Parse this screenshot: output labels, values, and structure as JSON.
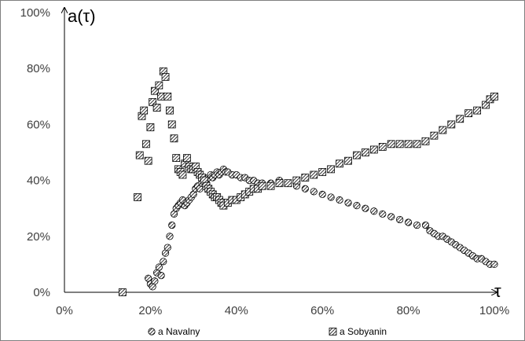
{
  "chart_data": {
    "type": "scatter",
    "title": "",
    "xlabel": "τ",
    "ylabel": "a(τ)",
    "xlim": [
      0,
      100
    ],
    "ylim": [
      0,
      100
    ],
    "x_ticks": [
      "0%",
      "20%",
      "40%",
      "60%",
      "80%",
      "100%"
    ],
    "y_ticks": [
      "0%",
      "20%",
      "40%",
      "60%",
      "80%",
      "100%"
    ],
    "grid": false,
    "legend_position": "bottom",
    "series": [
      {
        "name": "a Navalny",
        "marker": "circle-hatched",
        "points": [
          [
            19.5,
            5
          ],
          [
            20,
            3
          ],
          [
            20.5,
            2
          ],
          [
            21,
            4
          ],
          [
            21.5,
            7
          ],
          [
            22,
            9
          ],
          [
            22.5,
            6
          ],
          [
            23,
            11
          ],
          [
            23.5,
            14
          ],
          [
            24,
            16
          ],
          [
            24.5,
            20
          ],
          [
            25,
            24
          ],
          [
            25.5,
            28
          ],
          [
            26,
            30
          ],
          [
            26.5,
            31
          ],
          [
            27,
            32
          ],
          [
            27.5,
            33
          ],
          [
            28,
            31
          ],
          [
            28.5,
            32
          ],
          [
            29,
            33
          ],
          [
            29.5,
            34
          ],
          [
            30,
            35
          ],
          [
            30.5,
            37
          ],
          [
            31,
            38
          ],
          [
            31.5,
            37
          ],
          [
            32,
            39
          ],
          [
            32.5,
            40
          ],
          [
            33,
            39
          ],
          [
            33.5,
            41
          ],
          [
            34,
            42
          ],
          [
            34.5,
            41
          ],
          [
            35,
            42
          ],
          [
            35.5,
            43
          ],
          [
            36,
            42
          ],
          [
            36.5,
            43
          ],
          [
            37,
            44
          ],
          [
            37.5,
            43
          ],
          [
            38,
            43
          ],
          [
            39,
            42
          ],
          [
            40,
            42
          ],
          [
            41,
            41
          ],
          [
            42,
            41
          ],
          [
            43,
            40
          ],
          [
            44,
            40
          ],
          [
            45,
            39
          ],
          [
            46,
            39
          ],
          [
            48,
            39
          ],
          [
            50,
            40
          ],
          [
            52,
            39
          ],
          [
            54,
            38
          ],
          [
            56,
            37
          ],
          [
            58,
            36
          ],
          [
            60,
            35
          ],
          [
            62,
            34
          ],
          [
            64,
            33
          ],
          [
            66,
            32
          ],
          [
            68,
            31
          ],
          [
            70,
            30
          ],
          [
            72,
            29
          ],
          [
            74,
            28
          ],
          [
            76,
            27
          ],
          [
            78,
            26
          ],
          [
            80,
            25
          ],
          [
            82,
            24
          ],
          [
            84,
            24
          ],
          [
            85,
            22
          ],
          [
            86,
            21
          ],
          [
            87,
            20
          ],
          [
            88,
            20
          ],
          [
            89,
            19
          ],
          [
            90,
            18
          ],
          [
            91,
            17
          ],
          [
            92,
            16
          ],
          [
            93,
            15
          ],
          [
            94,
            14
          ],
          [
            95,
            13
          ],
          [
            96,
            12
          ],
          [
            97,
            12
          ],
          [
            98,
            11
          ],
          [
            99,
            10
          ],
          [
            100,
            10
          ]
        ]
      },
      {
        "name": "a Sobyanin",
        "marker": "square-hatched",
        "points": [
          [
            13.5,
            0
          ],
          [
            17,
            34
          ],
          [
            17.5,
            49
          ],
          [
            18,
            63
          ],
          [
            18.5,
            65
          ],
          [
            19,
            53
          ],
          [
            19.5,
            47
          ],
          [
            20,
            59
          ],
          [
            20.5,
            68
          ],
          [
            21,
            72
          ],
          [
            21.5,
            66
          ],
          [
            22,
            74
          ],
          [
            22.5,
            70
          ],
          [
            23,
            79
          ],
          [
            23.5,
            77
          ],
          [
            24,
            70
          ],
          [
            24.5,
            65
          ],
          [
            25,
            60
          ],
          [
            25.5,
            55
          ],
          [
            26,
            48
          ],
          [
            26.5,
            44
          ],
          [
            27,
            43
          ],
          [
            27.5,
            42
          ],
          [
            28,
            46
          ],
          [
            28.5,
            48
          ],
          [
            29,
            45
          ],
          [
            29.5,
            44
          ],
          [
            30,
            44
          ],
          [
            30.5,
            45
          ],
          [
            31,
            43
          ],
          [
            31.5,
            42
          ],
          [
            32,
            41
          ],
          [
            32.5,
            40
          ],
          [
            33,
            38
          ],
          [
            33.5,
            37
          ],
          [
            34,
            36
          ],
          [
            34.5,
            35
          ],
          [
            35,
            34
          ],
          [
            35.5,
            34
          ],
          [
            36,
            33
          ],
          [
            36.5,
            32
          ],
          [
            37,
            31
          ],
          [
            38,
            32
          ],
          [
            39,
            33
          ],
          [
            40,
            33
          ],
          [
            41,
            34
          ],
          [
            42,
            35
          ],
          [
            43,
            36
          ],
          [
            44,
            37
          ],
          [
            45,
            37
          ],
          [
            46,
            38
          ],
          [
            48,
            38
          ],
          [
            50,
            39
          ],
          [
            52,
            39
          ],
          [
            54,
            40
          ],
          [
            56,
            41
          ],
          [
            58,
            42
          ],
          [
            60,
            43
          ],
          [
            62,
            44
          ],
          [
            64,
            46
          ],
          [
            66,
            47
          ],
          [
            68,
            49
          ],
          [
            70,
            50
          ],
          [
            72,
            51
          ],
          [
            74,
            52
          ],
          [
            76,
            53
          ],
          [
            78,
            53
          ],
          [
            80,
            53
          ],
          [
            82,
            53
          ],
          [
            84,
            54
          ],
          [
            86,
            56
          ],
          [
            88,
            58
          ],
          [
            90,
            60
          ],
          [
            92,
            62
          ],
          [
            94,
            64
          ],
          [
            96,
            65
          ],
          [
            98,
            67
          ],
          [
            99,
            69
          ],
          [
            100,
            70
          ]
        ]
      }
    ]
  }
}
